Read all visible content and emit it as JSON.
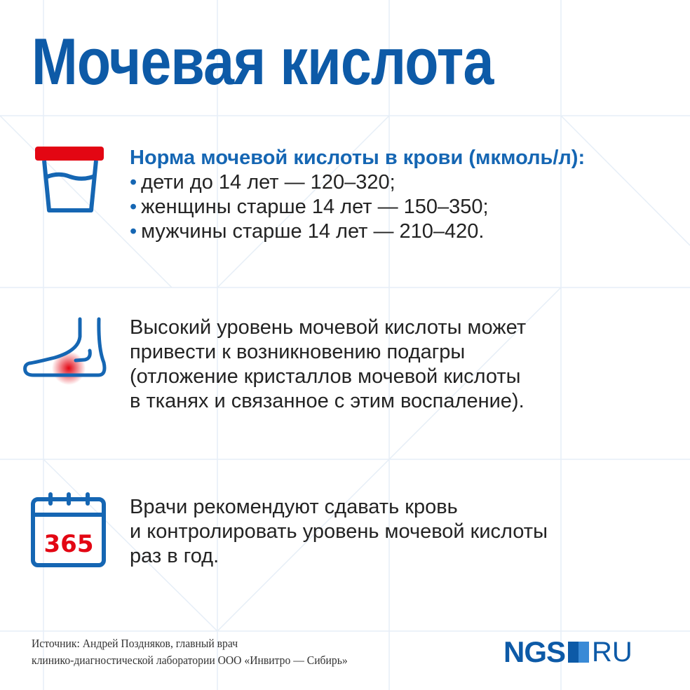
{
  "title": "Мочевая кислота",
  "colors": {
    "brand_blue": "#0d5aa7",
    "accent_red": "#e30613"
  },
  "sections": [
    {
      "icon": "urine-container-icon",
      "heading": "Норма мочевой кислоты в крови (мкмоль/л):",
      "bullets": [
        "дети до 14 лет — 120–320;",
        "женщины старше 14 лет — 150–350;",
        "мужчины старше 14 лет — 210–420."
      ]
    },
    {
      "icon": "foot-icon",
      "lines": [
        "Высокий уровень мочевой кислоты может",
        "привести к возникновению подагры",
        "(отложение кристаллов мочевой кислоты",
        "в тканях и связанное с этим воспаление)."
      ]
    },
    {
      "icon": "calendar-icon",
      "calendar_number": "365",
      "lines": [
        "Врачи рекомендуют сдавать кровь",
        "и контролировать уровень мочевой кислоты",
        "раз в год."
      ]
    }
  ],
  "footer": {
    "source_line1": "Источник: Андрей Поздняков, главный врач",
    "source_line2": "клинико-диагностической лаборатории ООО «Инвитро — Сибирь»",
    "logo_left": "NGS",
    "logo_right": "RU"
  }
}
